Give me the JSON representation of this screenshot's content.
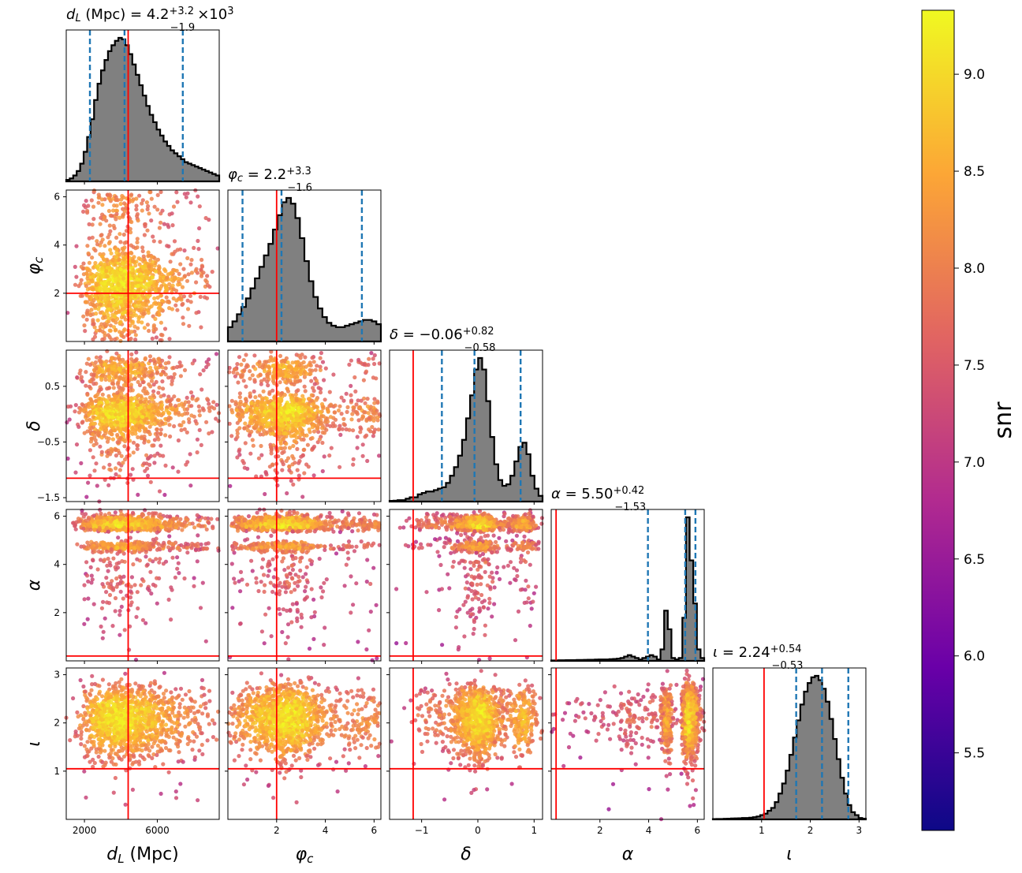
{
  "colorbar": {
    "label": "snr",
    "range": [
      5.1,
      9.33
    ],
    "ticks": [
      "5.5",
      "6.0",
      "6.5",
      "7.0",
      "7.5",
      "8.0",
      "8.5",
      "9.0"
    ],
    "colors": [
      "#0d0887",
      "#6a00a8",
      "#b12a90",
      "#e16462",
      "#fca636",
      "#f0f921"
    ]
  },
  "colors": {
    "truth": "#ff0000",
    "quantile": "#1f77b4",
    "hist_fill": "#808080",
    "hist_edge": "#000000"
  },
  "chart_data": {
    "type": "corner",
    "parameters": [
      {
        "key": "dL",
        "label": "d_L (Mpc)",
        "title": "d_L (Mpc) = 4.2 (+3.2 / −1.9) × 10^3",
        "title_parts": {
          "name": "d",
          "sub": "L",
          "unit": " (Mpc) = 4.2",
          "plus": "+3.2",
          "minus": "−1.9",
          "suffix": "×10",
          "exp": "3"
        },
        "range": [
          1000,
          9400
        ],
        "ticks": [
          2000,
          6000
        ],
        "tick_labels": [
          "2000",
          "6000"
        ],
        "truth": 4400,
        "quantiles": [
          2300,
          4200,
          7400
        ],
        "histogram": [
          1,
          2,
          4,
          7,
          12,
          20,
          30,
          42,
          55,
          66,
          75,
          82,
          88,
          92,
          95,
          97,
          96,
          92,
          86,
          79,
          72,
          65,
          58,
          51,
          45,
          40,
          35,
          31,
          27,
          24,
          21,
          19,
          17,
          15,
          13,
          12,
          11,
          10,
          9,
          8,
          7,
          6,
          5,
          4
        ]
      },
      {
        "key": "phic",
        "label": "φ_c",
        "title": "φ_c = 2.2 (+3.3 / −1.6)",
        "title_parts": {
          "name": "φ",
          "sub": "c",
          "unit": " = 2.2",
          "plus": "+3.3",
          "minus": "−1.6",
          "suffix": "",
          "exp": ""
        },
        "range": [
          0,
          6.28
        ],
        "ticks": [
          2,
          4,
          6
        ],
        "tick_labels": [
          "2",
          "4",
          "6"
        ],
        "truth": 2.0,
        "quantiles": [
          0.6,
          2.2,
          5.5
        ],
        "histogram": [
          10,
          14,
          19,
          24,
          30,
          37,
          44,
          52,
          60,
          68,
          78,
          88,
          97,
          100,
          96,
          86,
          72,
          56,
          42,
          31,
          23,
          17,
          13,
          11,
          10,
          10,
          11,
          12,
          13,
          14,
          15,
          15,
          14,
          12
        ]
      },
      {
        "key": "delta",
        "label": "δ",
        "title": "δ = −0.06 (+0.82 / −0.58)",
        "title_parts": {
          "name": "δ",
          "sub": "",
          "unit": " = −0.06",
          "plus": "+0.82",
          "minus": "−0.58",
          "suffix": "",
          "exp": ""
        },
        "range": [
          -1.57,
          1.15
        ],
        "ticks": [
          -1,
          0,
          1
        ],
        "tick_labels": [
          "−1",
          "0",
          "1"
        ],
        "ticks_y": [
          -1.5,
          -0.5,
          0.5
        ],
        "tick_labels_y": [
          "−1.5",
          "−0.5",
          "0.5"
        ],
        "truth": -1.15,
        "quantiles": [
          -0.64,
          -0.06,
          0.76
        ],
        "histogram": [
          0.5,
          0.6,
          1,
          1,
          2,
          3,
          3,
          5,
          6,
          7,
          7,
          8,
          9,
          10,
          13,
          18,
          24,
          32,
          43,
          58,
          74,
          92,
          100,
          92,
          70,
          45,
          26,
          15,
          11,
          12,
          18,
          28,
          38,
          41,
          33,
          18,
          9,
          4
        ]
      },
      {
        "key": "alpha",
        "label": "α",
        "title": "α = 5.50 (+0.42 / −1.53)",
        "title_parts": {
          "name": "α",
          "sub": "",
          "unit": " = 5.50",
          "plus": "+0.42",
          "minus": "−1.53",
          "suffix": "",
          "exp": ""
        },
        "range": [
          0,
          6.28
        ],
        "ticks": [
          2,
          4,
          6
        ],
        "tick_labels": [
          "2",
          "4",
          "6"
        ],
        "truth": 0.2,
        "quantiles": [
          3.97,
          5.5,
          5.92
        ],
        "histogram": [
          0.3,
          0.3,
          0.4,
          0.4,
          0.5,
          0.5,
          0.5,
          0.6,
          0.6,
          0.7,
          0.8,
          0.8,
          0.9,
          1,
          1,
          1,
          1.2,
          1.3,
          1.5,
          2,
          3,
          4,
          3,
          2,
          1,
          2,
          3,
          4,
          3,
          1,
          8,
          35,
          22,
          2,
          1,
          2,
          30,
          100,
          70,
          40,
          8,
          2
        ]
      },
      {
        "key": "iota",
        "label": "ι",
        "title": "ι = 2.24 (+0.54 / −0.53)",
        "title_parts": {
          "name": "ι",
          "sub": "",
          "unit": " = 2.24",
          "plus": "+0.54",
          "minus": "−0.53",
          "suffix": "",
          "exp": ""
        },
        "range": [
          0,
          3.14
        ],
        "ticks": [
          1,
          2,
          3
        ],
        "tick_labels": [
          "1",
          "2",
          "3"
        ],
        "truth": 1.05,
        "quantiles": [
          1.71,
          2.24,
          2.78
        ],
        "histogram": [
          0.2,
          0.3,
          0.3,
          0.4,
          0.5,
          0.6,
          0.7,
          0.8,
          1,
          1,
          1.2,
          1.5,
          2,
          3,
          4,
          6,
          8,
          12,
          18,
          25,
          34,
          45,
          57,
          69,
          80,
          89,
          95,
          99,
          100,
          97,
          91,
          82,
          70,
          56,
          42,
          29,
          18,
          10,
          5,
          3,
          1,
          0.5
        ]
      }
    ]
  }
}
